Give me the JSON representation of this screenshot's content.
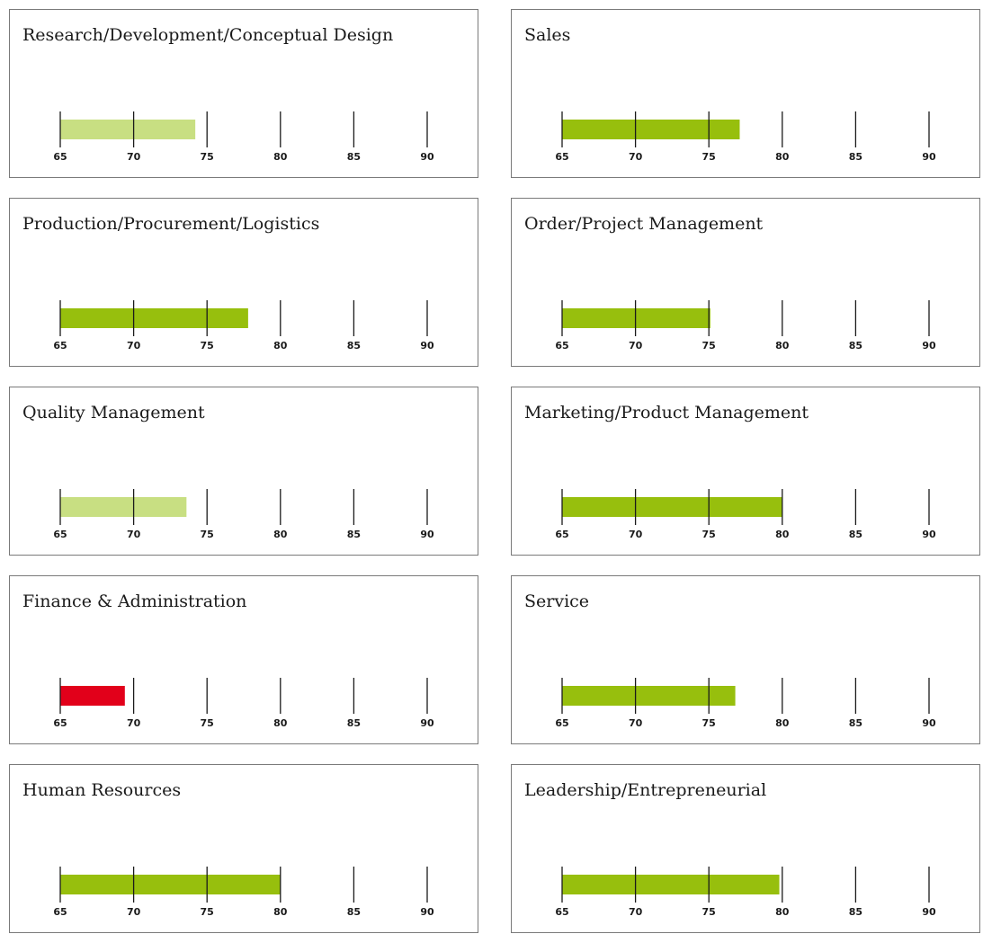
{
  "chart_data": [
    {
      "type": "bar",
      "title": "Research/Development/Conceptual Design",
      "value": 74.2,
      "color": "#c8df82",
      "ticks": [
        65,
        70,
        75,
        80,
        85,
        90
      ],
      "xlim": [
        65,
        90
      ]
    },
    {
      "type": "bar",
      "title": "Sales",
      "value": 77.1,
      "color": "#97bf0d",
      "ticks": [
        65,
        70,
        75,
        80,
        85,
        90
      ],
      "xlim": [
        65,
        90
      ]
    },
    {
      "type": "bar",
      "title": "Production/Procurement/Logistics",
      "value": 77.8,
      "color": "#97bf0d",
      "ticks": [
        65,
        70,
        75,
        80,
        85,
        90
      ],
      "xlim": [
        65,
        90
      ]
    },
    {
      "type": "bar",
      "title": "Order/Project Management",
      "value": 75.1,
      "color": "#97bf0d",
      "ticks": [
        65,
        70,
        75,
        80,
        85,
        90
      ],
      "xlim": [
        65,
        90
      ]
    },
    {
      "type": "bar",
      "title": "Quality Management",
      "value": 73.6,
      "color": "#c8df82",
      "ticks": [
        65,
        70,
        75,
        80,
        85,
        90
      ],
      "xlim": [
        65,
        90
      ]
    },
    {
      "type": "bar",
      "title": "Marketing/Product Management",
      "value": 80.0,
      "color": "#97bf0d",
      "ticks": [
        65,
        70,
        75,
        80,
        85,
        90
      ],
      "xlim": [
        65,
        90
      ]
    },
    {
      "type": "bar",
      "title": "Finance & Administration",
      "value": 69.4,
      "color": "#e2001a",
      "ticks": [
        65,
        70,
        75,
        80,
        85,
        90
      ],
      "xlim": [
        65,
        90
      ]
    },
    {
      "type": "bar",
      "title": "Service",
      "value": 76.8,
      "color": "#97bf0d",
      "ticks": [
        65,
        70,
        75,
        80,
        85,
        90
      ],
      "xlim": [
        65,
        90
      ]
    },
    {
      "type": "bar",
      "title": "Human Resources",
      "value": 80.0,
      "color": "#97bf0d",
      "ticks": [
        65,
        70,
        75,
        80,
        85,
        90
      ],
      "xlim": [
        65,
        90
      ]
    },
    {
      "type": "bar",
      "title": "Leadership/Entrepreneurial",
      "value": 79.8,
      "color": "#97bf0d",
      "ticks": [
        65,
        70,
        75,
        80,
        85,
        90
      ],
      "xlim": [
        65,
        90
      ]
    }
  ]
}
